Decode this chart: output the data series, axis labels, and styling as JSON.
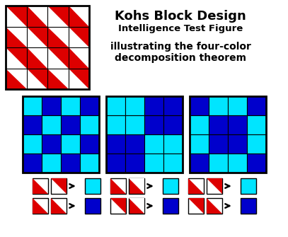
{
  "title1": "Kohs Block Design",
  "title2": "Intelligence Test Figure",
  "title3": "illustrating the four-color",
  "title4": "decomposition theorem",
  "red": "#dd0000",
  "white": "#ffffff",
  "cyan": "#00e5ff",
  "blue": "#0000cc",
  "kohs_pattern": [
    [
      "TR",
      "BL",
      "TR",
      "BL"
    ],
    [
      "BL",
      "TR",
      "BL",
      "TR"
    ],
    [
      "TR",
      "BL",
      "TR",
      "BL"
    ],
    [
      "BL",
      "TR",
      "BL",
      "TR"
    ]
  ],
  "cyan_grid1": [
    [
      "C",
      "B",
      "C",
      "B"
    ],
    [
      "B",
      "C",
      "B",
      "C"
    ],
    [
      "C",
      "B",
      "C",
      "B"
    ],
    [
      "B",
      "C",
      "B",
      "C"
    ]
  ],
  "cyan_grid2": [
    [
      "C",
      "C",
      "B",
      "B"
    ],
    [
      "C",
      "C",
      "B",
      "B"
    ],
    [
      "B",
      "B",
      "C",
      "C"
    ],
    [
      "B",
      "B",
      "C",
      "C"
    ]
  ],
  "cyan_grid3": [
    [
      "B",
      "C",
      "C",
      "B"
    ],
    [
      "C",
      "B",
      "B",
      "C"
    ],
    [
      "C",
      "B",
      "B",
      "C"
    ],
    [
      "B",
      "C",
      "C",
      "B"
    ]
  ],
  "bottom_groups": [
    {
      "row1": {
        "b1": [
          "BL",
          "red",
          "white"
        ],
        "b2": [
          "TR",
          "red",
          "white"
        ],
        "result": "cyan"
      },
      "row2": {
        "b1": [
          "BL",
          "red",
          "white"
        ],
        "b2": [
          "BL",
          "red",
          "white"
        ],
        "result": "blue"
      }
    },
    {
      "row1": {
        "b1": [
          "BL",
          "red",
          "white"
        ],
        "b2": [
          "TR",
          "white",
          "red"
        ],
        "result": "cyan"
      },
      "row2": {
        "b1": [
          "TR",
          "red",
          "white"
        ],
        "b2": [
          "TR",
          "white",
          "red"
        ],
        "result": "blue"
      }
    },
    {
      "row1": {
        "b1": [
          "BL",
          "red",
          "white"
        ],
        "b2": [
          "TR",
          "red",
          "white"
        ],
        "result": "cyan"
      },
      "row2": {
        "b1": [
          "TR",
          "red",
          "white"
        ],
        "b2": [
          "BL",
          "red",
          "white"
        ],
        "result": "blue"
      }
    }
  ]
}
